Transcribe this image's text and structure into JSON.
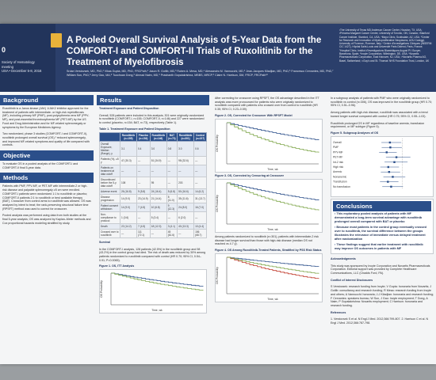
{
  "header": {
    "abstract_number": "0",
    "society_lines": "Society of Hematology\nmeeting\nUSA • December 5-8, 2016",
    "title_main": "A Pooled Overall Survival Analysis of 5-Year Data from the COMFORT-I and COMFORT-II Trials of Ruxolitinib for the Treatment of Myelofibrosis",
    "authors": "Srdan Verstovsek, MD, PhD,¹ Vikas Gupta, MD, PhD, FRCPath,² Jason R. Gotlib, MD,³ Ruben A. Mesa, MD,⁴ Alessandro M. Vannucchi, MD,⁵ Jean-Jacques Kiladjian, MD, PhD,⁶ Francesco Cervantes, MD, PhD,⁷ William Sun, PhD,⁸ Jerry Gao, MA,⁸ Tuochuan Dong,⁹ Ahmad Naim, MD,⁹ Prashanth Gopalakrishna, MBBS, MRCP,⁹ Claire N. Harrison, DM, FRCP, FRCPath¹⁰",
    "affiliations": "¹The University of Texas MD Anderson Cancer Center, Houston, TX, USA; ²Princess Margaret Cancer Centre, University of Toronto, ON, Canada; ³Stanford Cancer Institute, Stanford, CA, USA; ⁴Mayo Clinic, Scottsdale, AZ, USA; ⁵Center for Research and Innovation of Myeloproliferative Neoplasms, AOU Careggi, University of Florence, Florence, Italy; ⁶Centre d'Investigations Cliniques (INSERM CIC 1427), Hôpital Saint-Louis and Université Paris Diderot, Paris, France; ⁷Hospital Clínic, Institut d'Investigacions Biomèdiques August Pi i Sunyer, Barcelona, Spain; ⁸Incyte Corporation, Wilmington, DE, USA; ⁹Novartis Pharmaceuticals Corporation, East Hanover, NJ, USA; ¹⁰Novartis Pharma AG, Basel, Switzerland; ¹¹Guy's and St. Thomas' NHS Foundation Trust, London, UK"
  },
  "sections": {
    "background": "Background",
    "objective": "Objective",
    "methods": "Methods",
    "results": "Results",
    "conclusions": "Conclusions"
  },
  "background_text": "Ruxolitinib is a Janus kinase (JAK) 1/JAK2 inhibitor approved for the treatment of patients with intermediate- or high-risk myelofibrosis (MF), including primary MF (PMF), post-polycythemia vera MF (PPV-MF), and post-essential thrombocythemia MF (PET-MF) by the US Food and Drug Administration and for MF-related splenomegaly or symptoms by the European Medicines Agency.",
  "background_text2": "Two randomized, phase 3 studies (COMFORT-I and COMFORT-II), ruxolitinib prolonged overall survival (OS),¹ reduced splenomegaly, and improved MF-related symptoms and quality of life compared with controls.",
  "objective_text": "To evaluate OS in a pooled analysis of the COMFORT-I and COMFORT-II final 5-year data.",
  "methods_text": "Patients with PMF, PPV-MF, or PET-MF with intermediate-2 or high-risk disease and palpable splenomegaly ≥5 cm were enrolled. COMFORT-I patients were randomized 1:1 to ruxolitinib or placebo; COMFORT-II patients 2:1 to ruxolitinib or best available therapy (BAT). Crossover from control arms to ruxolitinib was allowed. OS was analyzed by intent to treat; the rank-preserving structural failure time (RPSFT) method was used to correct for crossover.",
  "methods_text2": "Pooled analysis was performed using data from both studies at the final 5-year analysis; OS was analyzed by Kaplan–Meier methods and Cox proportional hazards modeling stratified by study.",
  "results_intro": "Treatment Exposure and Patient Disposition",
  "results_text": "Overall, 528 patients were included in this analysis; 301 were originally randomized to ruxolitinib (COMFORT-I, n=155; COMFORT-II, n=146) and 227 were randomized to control (placebo, n=154; BAT, n=73), respectively (Table 1).",
  "table1": {
    "caption": "Table 1. Treatment Exposure and Patient Disposition",
    "headers": [
      "",
      "Ruxolitinib (n=155)",
      "Placebo (n=154)",
      "Ruxolitinib (n=146)",
      "BAT (n=73)",
      "Ruxolitinib (n=301)",
      "Control (n=227)"
    ],
    "rows": [
      [
        "Overall Exposure, Median (Range), y",
        "3.1",
        "0.4",
        "3.0",
        "0.8",
        "3.0",
        "0.6"
      ],
      [
        "Patients (%), ≥5 y",
        "47 (30.3)",
        "—",
        "51 (34.9)",
        "—",
        "98 (32.6)",
        "—"
      ],
      [
        "Patients on treatment at data cutoff",
        "—",
        "—",
        "—",
        "—",
        "—",
        "—"
      ],
      [
        "Discontinued before the 5-y data cutoff",
        "108",
        "—",
        "95",
        "—",
        "203",
        "—"
      ],
      [
        "Adverse event",
        "26 (16.8)",
        "9 (5.8)",
        "24 (16.4)",
        "5 (6.8)",
        "50 (16.6)",
        "14 (6.2)"
      ],
      [
        "Disease progression",
        "14 (9.0)",
        "23 (14.9)",
        "21 (14.4)",
        "8 (11.0)",
        "35 (11.6)",
        "31 (13.7)"
      ],
      [
        "Patient consent withdrawn",
        "14 (9.0)",
        "7 (4.5)",
        "10 (6.8)",
        "9 (12.3)",
        "24 (8.0)",
        "16 (7.0)"
      ],
      [
        "Non-compliance to protocol",
        "1 (0.6)",
        "—",
        "5 (3.4)",
        "—",
        "6 (2.0)",
        "—"
      ],
      [
        "Death",
        "22 (14.2)",
        "7 (4.5)",
        "18 (12.3)",
        "3 (4.1)",
        "40 (13.3)",
        "10 (4.4)"
      ],
      [
        "Crossed over to ruxolitinib",
        "—",
        "111 (72.1)",
        "—",
        "45 (61.6)",
        "—",
        "156 (68.7)"
      ]
    ]
  },
  "survival_head": "Survival",
  "survival_text": "In the COMFORT-I analysis, 128 patients (42.5%) in the ruxolitinib group and 98 (43.2%) in the control group had died. The risk of death was reduced by 30% among patients randomized to ruxolitinib compared with control (HR 0.70; 95% CI, 0.54–0.91; P=0.0065).",
  "figure1": {
    "caption": "Figure 1. OS, ITT Analysis",
    "ylabel": "OS Probability",
    "xlabel": "Time, wk",
    "legend": [
      "Ruxolitinib",
      "Control"
    ],
    "colors": [
      "#2b4f8a",
      "#7fa64a"
    ]
  },
  "figure2": {
    "caption": "Figure 2. OS, Corrected for Crossover With RPSFT Model",
    "ylabel": "OS Probability",
    "xlabel": "Time, wk",
    "colors": [
      "#2b4f8a",
      "#7fa64a"
    ]
  },
  "figure3": {
    "caption": "Figure 3. OS, Corrected by Censoring at Crossover",
    "ylabel": "OS Probability",
    "xlabel": "Time, wk",
    "colors": [
      "#2b4f8a",
      "#7fa64a"
    ]
  },
  "figure4": {
    "caption": "Figure 4. OS Among Ruxolitinib-Treated Patients, Stratified by PSS Risk Status",
    "ylabel": "OS Probability",
    "xlabel": "Time, wk",
    "colors": [
      "#2b4f8a",
      "#c0392b",
      "#7fa64a"
    ]
  },
  "col3_text": "After correcting for crossover using RPSFT, the OS advantage described in the ITT analysis was more pronounced for patients who were originally randomized to ruxolitinib compared with patients who crossed over from control to ruxolitinib (HR 0.35; 95% CI, 0.23–0.59).",
  "col3_text2": "Among patients randomized to ruxolitinib (n=301), patients with intermediate-2 risk disease had longer survival than those with high-risk disease (median OS not reached vs 4.7 y).",
  "col4_text": "In a subgroup analysis of patients with PMF who were originally randomized to ruxolitinib vs control (n=306), OS was improved in the ruxolitinib group (HR 0.70; 95% CI, 0.51–0.96).",
  "col4_text2": "Among patients with high-risk disease, ruxolitinib was associated with a trend toward longer survival compared with control (HR 0.75; 95% CI, 0.55–1.03).",
  "col4_text3": "Ruxolitinib prolonged OS in MF regardless of baseline anemia, transfusion requirement, or MF subtype (Figure 5).",
  "figure5": {
    "caption": "Figure 5. Subgroup Analyses of OS",
    "rows": [
      "Overall",
      "PMF",
      "PPV-MF",
      "PET-MF",
      "Int-2 risk",
      "High risk",
      "Anemic",
      "Nonanemic",
      "Transfusion",
      "No transfusion"
    ],
    "hr": [
      0.7,
      0.71,
      0.62,
      0.86,
      0.81,
      0.66,
      0.68,
      0.77,
      0.65,
      0.73
    ]
  },
  "conclusions": [
    "This exploratory pooled analysis of patients with MF demonstrated a long-term survival advantage with ruxolitinib prolonged overall compared with BAT or placebo",
    "Because most patients in the control group eventually crossed over to ruxolitinib, the survival difference between the groups illustrates the relevance of immediate versus delayed treatment after randomization",
    "These findings suggest that earlier treatment with ruxolitinib may improve OS outcomes in patients with MF"
  ],
  "ack_head": "Acknowledgments",
  "ack_text": "This study was sponsored by Incyte Corporation and Novartis Pharmaceuticals Corporation. Editorial support was provided by Complete Healthcare Communications, LLC (Chadds Ford, PA).",
  "coi_head": "Conflict of Interest Disclosures",
  "coi_text": "S Verstovsek: research funding from Incyte; V Gupta: honoraria from Novartis; J Gotlib: consultancy and research funding; R Mesa: research funding from Incyte and others; A Vannucchi: honoraria; J-J Kiladjian: honoraria and research funding; F Cervantes: speakers bureau; W Sun, J Gao: Incyte employment; T Dong, A Naim, P Gopalakrishna: Novartis employment; C Harrison: honoraria and research funding.",
  "ref_head": "References",
  "ref_text": "1. Verstovsek S et al. N Engl J Med. 2012;366:799-807. 2. Harrison C et al. N Engl J Med. 2012;366:787-798."
}
